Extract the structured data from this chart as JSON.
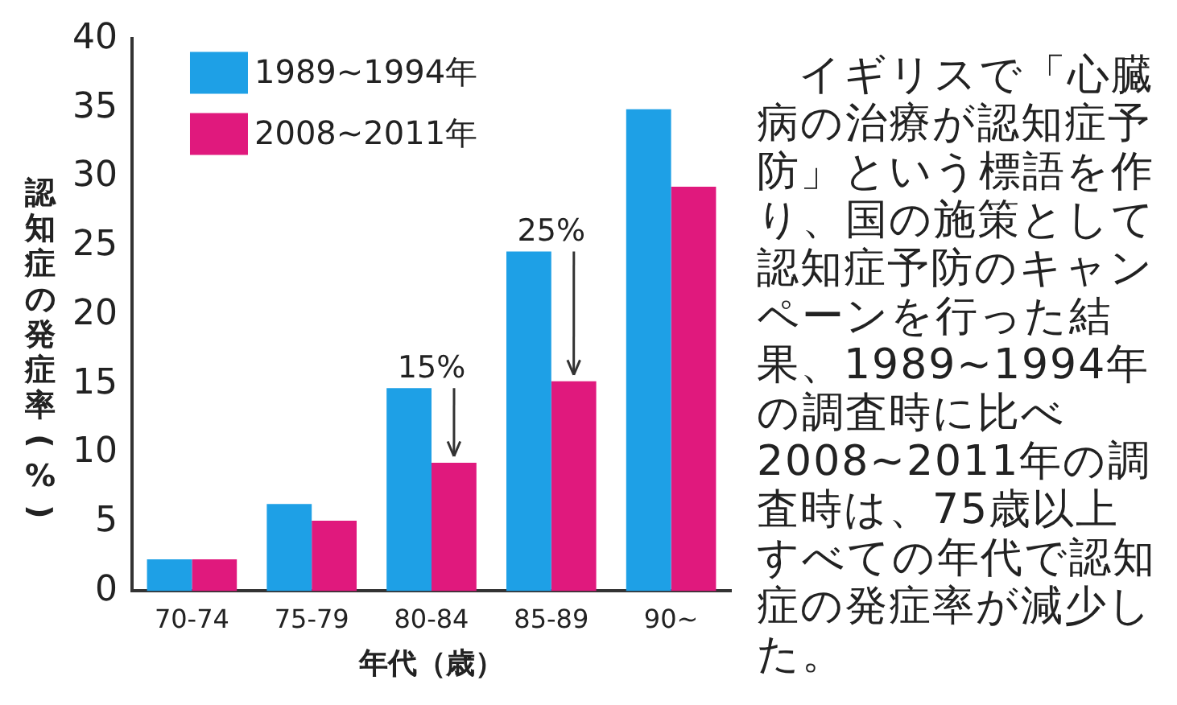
{
  "chart_data": {
    "type": "bar",
    "xlabel": "年代（歳）",
    "ylabel": "認知症の発症率(%)",
    "categories": [
      "70-74",
      "75-79",
      "80-84",
      "85-89",
      "90~"
    ],
    "series": [
      {
        "name": "1989~1994年",
        "color": "#1ea0e6",
        "values": [
          2.3,
          6.3,
          14.7,
          24.6,
          34.9
        ]
      },
      {
        "name": "2008~2011年",
        "color": "#e0197d",
        "values": [
          2.3,
          5.1,
          9.3,
          15.2,
          29.3
        ]
      }
    ],
    "ylim": [
      0,
      40
    ],
    "yticks": [
      0,
      5,
      10,
      15,
      20,
      25,
      30,
      35,
      40
    ],
    "grid": false,
    "legend": "top",
    "annotations": [
      {
        "text": "15%",
        "x": "80-84",
        "y": 14.7
      },
      {
        "text": "25%",
        "x": "85-89",
        "y": 24.6
      },
      "イギリスで「心臓病の治療が認知症予防」という標語を作り、国の施策として認知症予防のキャンペーンを行った結果、1989~1994年の調査時に比べ2008~2011年の調査時は、75歳以上すべての年代で認知症の発症率が減少した。"
    ]
  }
}
